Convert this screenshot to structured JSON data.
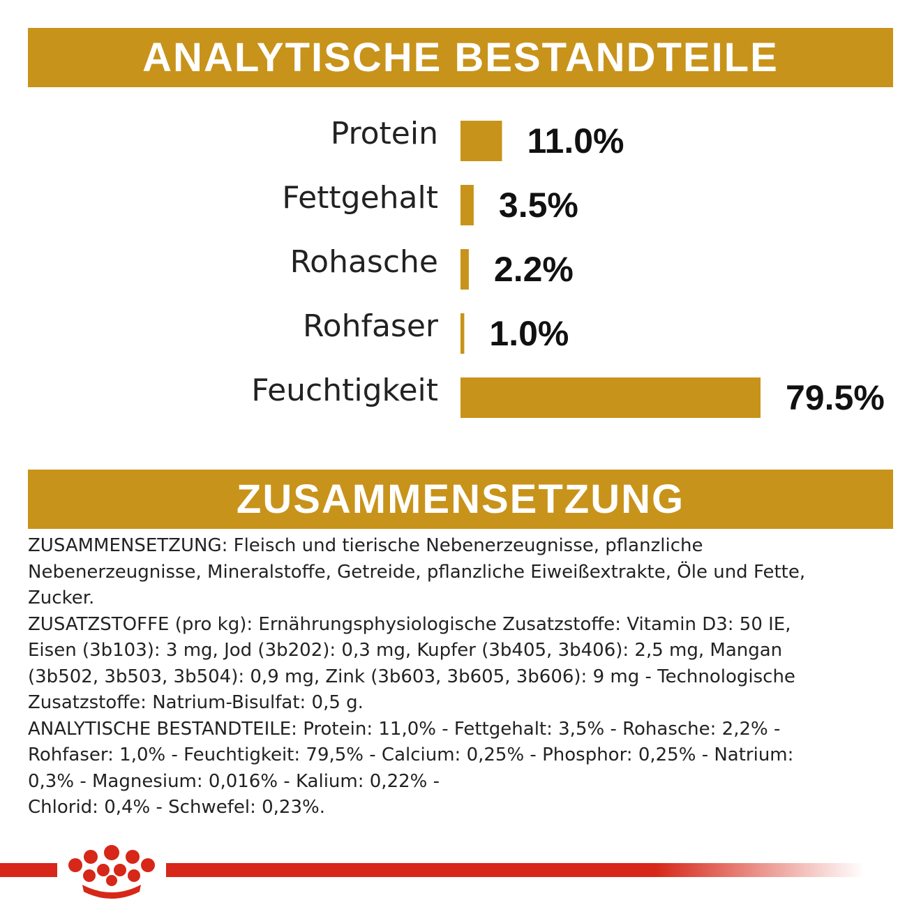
{
  "header": {
    "title": "ANALYTISCHE BESTANDTEILE"
  },
  "chart_data": {
    "type": "bar",
    "orientation": "horizontal",
    "categories": [
      "Protein",
      "Fettgehalt",
      "Rohasche",
      "Rohfaser",
      "Feuchtigkeit"
    ],
    "values": [
      11.0,
      3.5,
      2.2,
      1.0,
      79.5
    ],
    "value_labels": [
      "11.0%",
      "3.5%",
      "2.2%",
      "1.0%",
      "79.5%"
    ],
    "color": "#c8931a"
  },
  "composition": {
    "title": "ZUSAMMENSETZUNG",
    "lines": [
      "ZUSAMMENSETZUNG: Fleisch und tierische Nebenerzeugnisse, pflanzliche",
      "Nebenerzeugnisse, Mineralstoffe, Getreide, pflanzliche Eiweißextrakte, Öle und Fette,",
      "Zucker.",
      "ZUSATZSTOFFE (pro kg): Ernährungsphysiologische Zusatzstoffe: Vitamin D3: 50 IE,",
      "Eisen (3b103): 3 mg, Jod (3b202): 0,3 mg, Kupfer (3b405, 3b406): 2,5 mg, Mangan",
      "(3b502, 3b503, 3b504): 0,9 mg, Zink (3b603, 3b605, 3b606): 9 mg - Technologische",
      "Zusatzstoffe: Natrium-Bisulfat: 0,5 g.",
      "ANALYTISCHE BESTANDTEILE: Protein: 11,0% - Fettgehalt: 3,5% - Rohasche: 2,2% -",
      "Rohfaser: 1,0% - Feuchtigkeit: 79,5% - Calcium: 0,25% - Phosphor: 0,25% - Natrium:",
      "0,3% - Magnesium: 0,016% - Kalium: 0,22% -",
      "Chlorid: 0,4% - Schwefel: 0,23%."
    ]
  }
}
